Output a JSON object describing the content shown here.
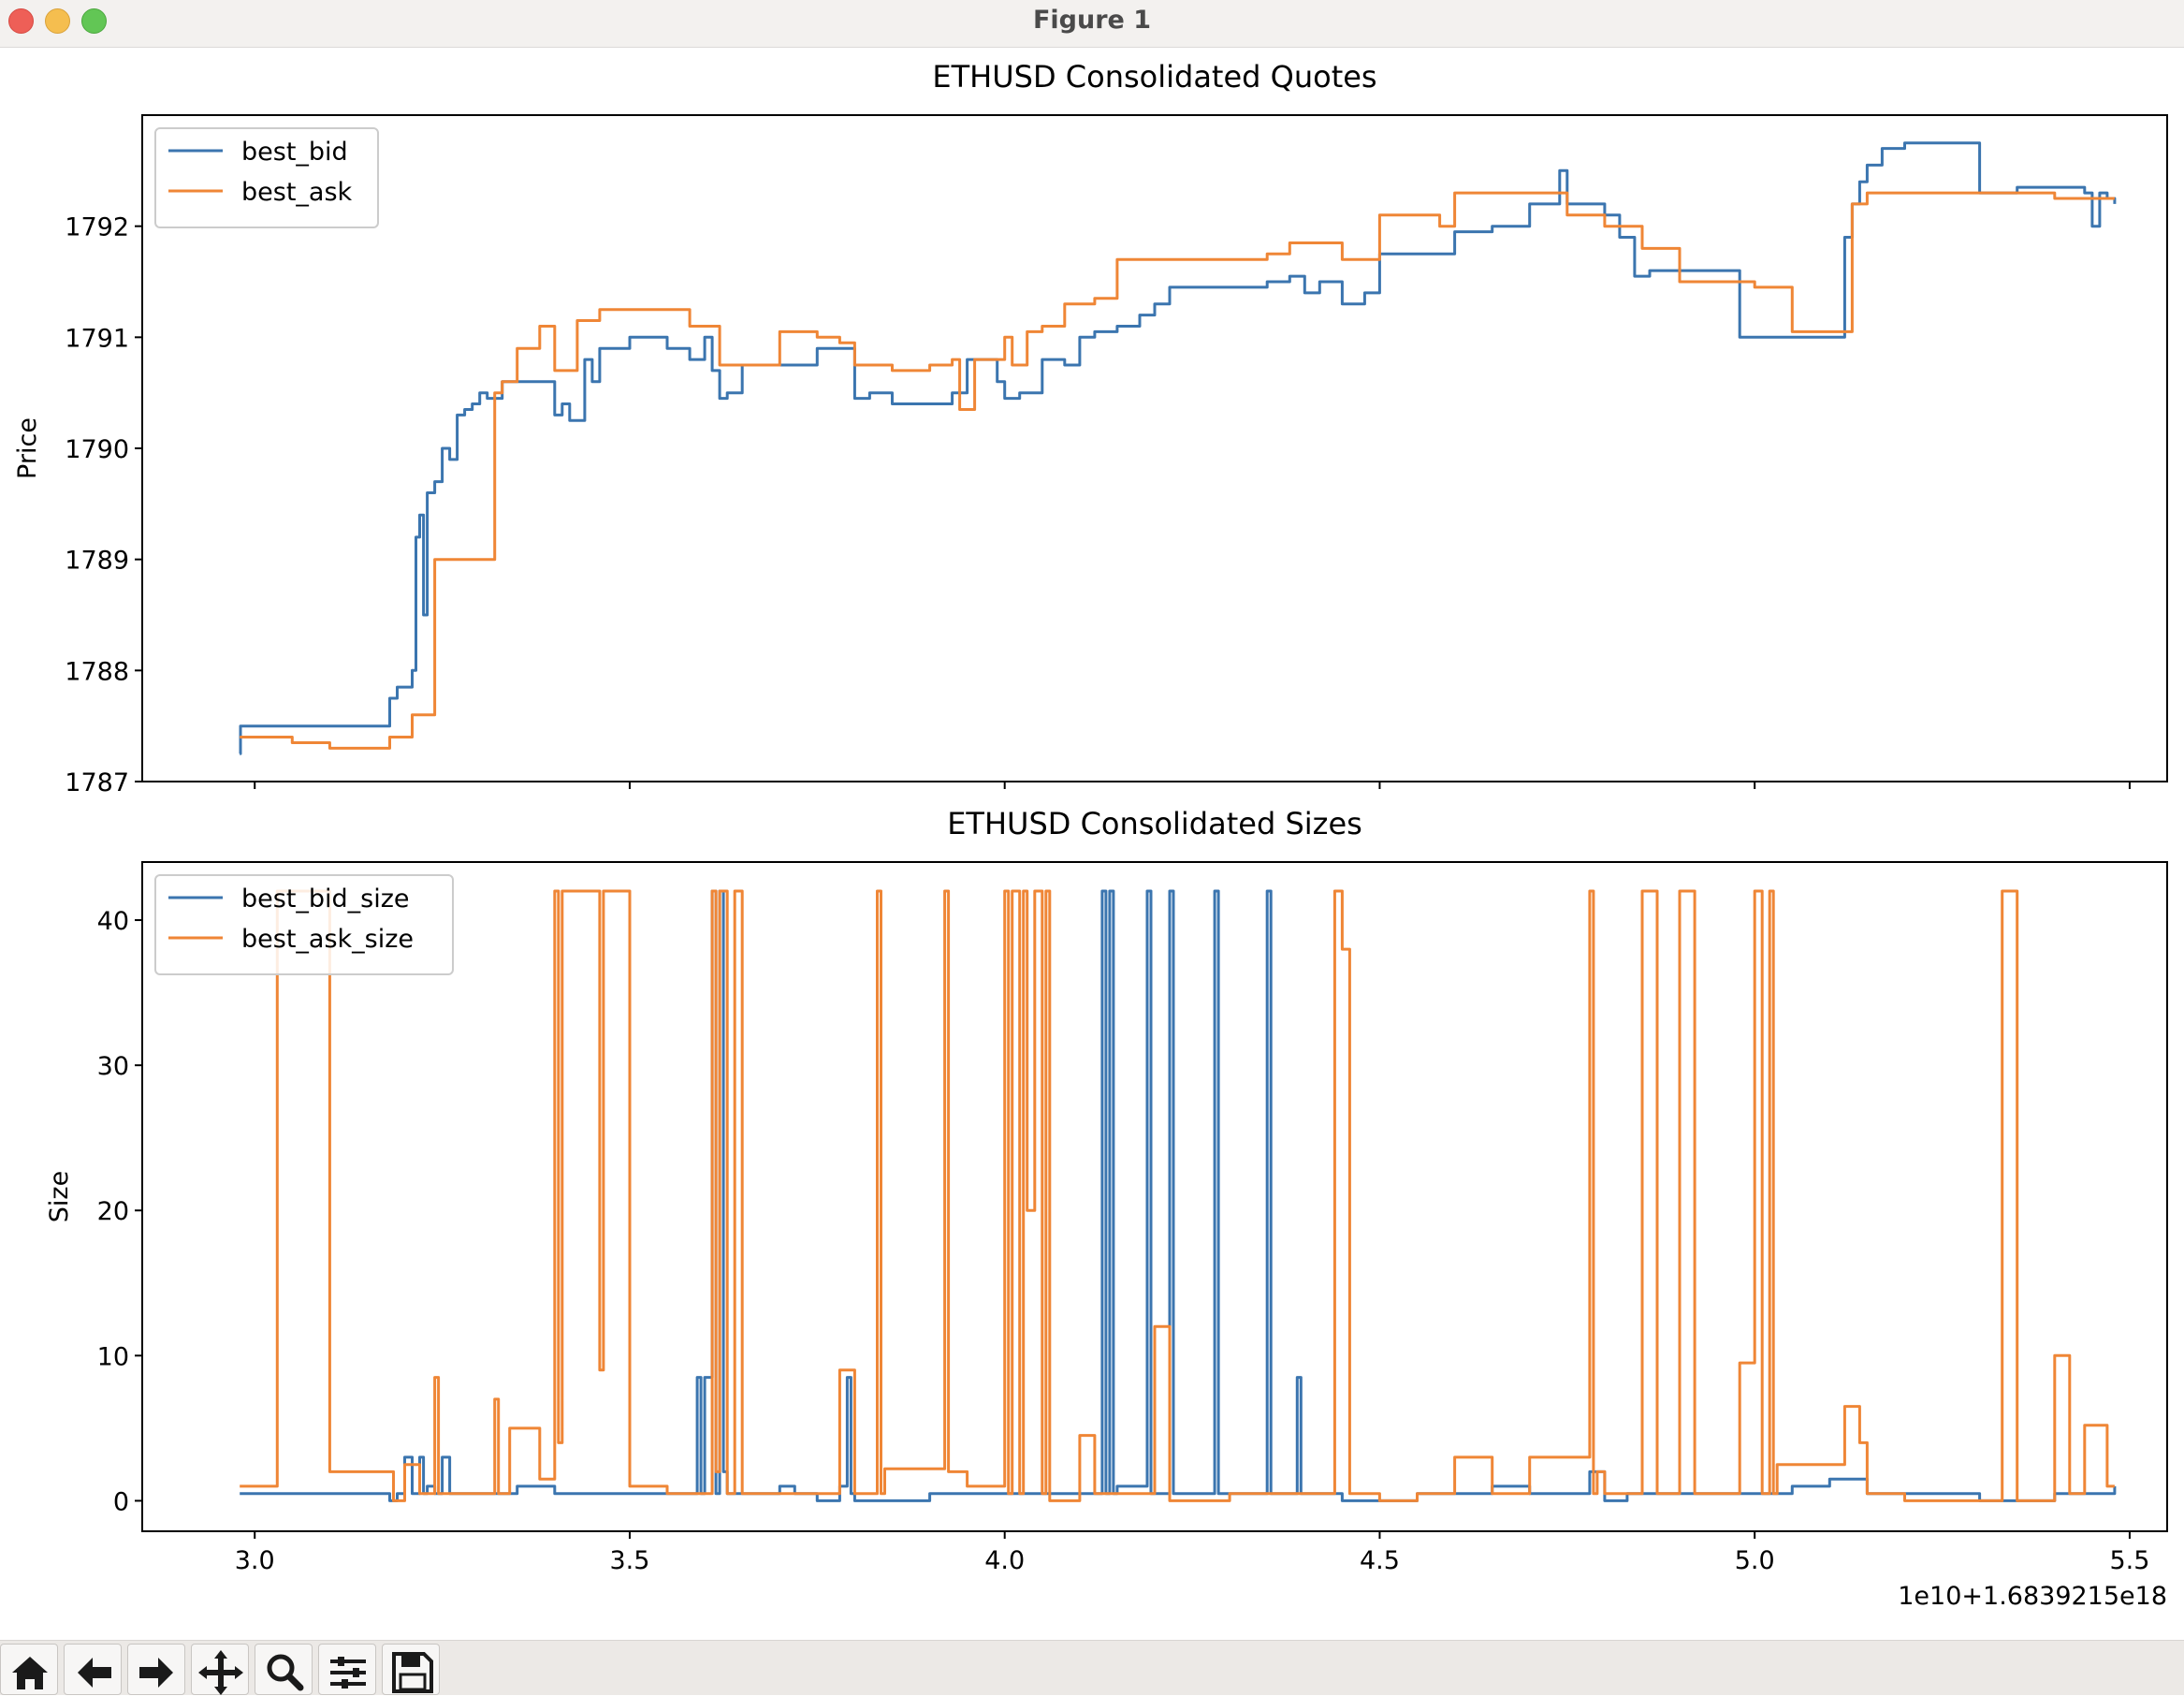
{
  "window": {
    "title": "Figure 1"
  },
  "toolbar": {
    "buttons": [
      {
        "name": "home-icon",
        "tooltip": "Reset original view"
      },
      {
        "name": "back-arrow-icon",
        "tooltip": "Back to previous view"
      },
      {
        "name": "forward-arrow-icon",
        "tooltip": "Forward to next view"
      },
      {
        "name": "pan-move-icon",
        "tooltip": "Pan axes"
      },
      {
        "name": "zoom-magnifier-icon",
        "tooltip": "Zoom to rectangle"
      },
      {
        "name": "configure-subplots-icon",
        "tooltip": "Configure subplots"
      },
      {
        "name": "save-floppy-icon",
        "tooltip": "Save the figure"
      }
    ]
  },
  "chart_data": [
    {
      "type": "line",
      "title": "ETHUSD Consolidated Quotes",
      "xlabel": "",
      "ylabel": "Price",
      "xlim": [
        2.85,
        5.55
      ],
      "ylim": [
        1787.0,
        1793.0
      ],
      "xticks": [
        3.0,
        3.5,
        4.0,
        4.5,
        5.0,
        5.5
      ],
      "xtick_labels_visible": false,
      "yticks": [
        1787,
        1788,
        1789,
        1790,
        1791,
        1792
      ],
      "ytick_labels": [
        "1787",
        "1788",
        "1789",
        "1790",
        "1791",
        "1792"
      ],
      "legend": {
        "placement": "upper-left"
      },
      "series": [
        {
          "name": "best_bid",
          "color": "#3b75af",
          "step": true,
          "x": [
            2.98,
            2.981,
            3.18,
            3.19,
            3.21,
            3.215,
            3.22,
            3.225,
            3.23,
            3.24,
            3.25,
            3.26,
            3.27,
            3.28,
            3.29,
            3.3,
            3.31,
            3.33,
            3.35,
            3.4,
            3.41,
            3.42,
            3.44,
            3.45,
            3.46,
            3.5,
            3.55,
            3.58,
            3.6,
            3.61,
            3.62,
            3.63,
            3.65,
            3.7,
            3.75,
            3.78,
            3.8,
            3.82,
            3.85,
            3.9,
            3.93,
            3.95,
            3.97,
            3.99,
            4.0,
            4.02,
            4.05,
            4.08,
            4.1,
            4.12,
            4.15,
            4.18,
            4.2,
            4.22,
            4.25,
            4.3,
            4.35,
            4.38,
            4.4,
            4.42,
            4.45,
            4.48,
            4.5,
            4.55,
            4.6,
            4.65,
            4.7,
            4.73,
            4.74,
            4.75,
            4.8,
            4.82,
            4.84,
            4.86,
            4.9,
            4.95,
            4.98,
            5.0,
            5.05,
            5.1,
            5.12,
            5.13,
            5.14,
            5.15,
            5.17,
            5.2,
            5.25,
            5.28,
            5.3,
            5.35,
            5.4,
            5.44,
            5.45,
            5.46,
            5.47,
            5.48
          ],
          "y": [
            1787.25,
            1787.5,
            1787.75,
            1787.85,
            1788.0,
            1789.2,
            1789.4,
            1788.5,
            1789.6,
            1789.7,
            1790.0,
            1789.9,
            1790.3,
            1790.35,
            1790.4,
            1790.5,
            1790.45,
            1790.6,
            1790.6,
            1790.3,
            1790.4,
            1790.25,
            1790.8,
            1790.6,
            1790.9,
            1791.0,
            1790.9,
            1790.8,
            1791.0,
            1790.7,
            1790.45,
            1790.5,
            1790.75,
            1790.75,
            1790.9,
            1790.9,
            1790.45,
            1790.5,
            1790.4,
            1790.4,
            1790.5,
            1790.8,
            1790.8,
            1790.6,
            1790.45,
            1790.5,
            1790.8,
            1790.75,
            1791.0,
            1791.05,
            1791.1,
            1791.2,
            1791.3,
            1791.45,
            1791.45,
            1791.45,
            1791.5,
            1791.55,
            1791.4,
            1791.5,
            1791.3,
            1791.4,
            1791.75,
            1791.75,
            1791.95,
            1792.0,
            1792.2,
            1792.2,
            1792.5,
            1792.2,
            1792.1,
            1791.9,
            1791.55,
            1791.6,
            1791.6,
            1791.6,
            1791.0,
            1791.0,
            1791.0,
            1791.0,
            1791.9,
            1792.2,
            1792.4,
            1792.55,
            1792.7,
            1792.75,
            1792.75,
            1792.75,
            1792.3,
            1792.35,
            1792.35,
            1792.3,
            1792.0,
            1792.3,
            1792.25,
            1792.2
          ]
        },
        {
          "name": "best_ask",
          "color": "#ef8636",
          "step": true,
          "x": [
            2.98,
            3.0,
            3.05,
            3.1,
            3.18,
            3.21,
            3.24,
            3.32,
            3.33,
            3.35,
            3.38,
            3.4,
            3.43,
            3.46,
            3.5,
            3.58,
            3.62,
            3.65,
            3.7,
            3.75,
            3.78,
            3.8,
            3.85,
            3.9,
            3.93,
            3.94,
            3.96,
            4.0,
            4.01,
            4.03,
            4.05,
            4.08,
            4.12,
            4.15,
            4.17,
            4.2,
            4.3,
            4.35,
            4.38,
            4.4,
            4.45,
            4.5,
            4.52,
            4.58,
            4.6,
            4.65,
            4.7,
            4.75,
            4.8,
            4.85,
            4.9,
            5.0,
            5.05,
            5.13,
            5.15,
            5.2,
            5.3,
            5.4,
            5.48
          ],
          "y": [
            1787.4,
            1787.4,
            1787.35,
            1787.3,
            1787.4,
            1787.6,
            1789.0,
            1790.5,
            1790.6,
            1790.9,
            1791.1,
            1790.7,
            1791.15,
            1791.25,
            1791.25,
            1791.1,
            1790.75,
            1790.75,
            1791.05,
            1791.0,
            1790.95,
            1790.75,
            1790.7,
            1790.75,
            1790.8,
            1790.35,
            1790.8,
            1791.0,
            1790.75,
            1791.05,
            1791.1,
            1791.3,
            1791.35,
            1791.7,
            1791.7,
            1791.7,
            1791.7,
            1791.75,
            1791.85,
            1791.85,
            1791.7,
            1792.1,
            1792.1,
            1792.0,
            1792.3,
            1792.3,
            1792.3,
            1792.1,
            1792.0,
            1791.8,
            1791.5,
            1791.45,
            1791.05,
            1792.2,
            1792.3,
            1792.3,
            1792.3,
            1792.25,
            1792.25
          ]
        }
      ]
    },
    {
      "type": "line",
      "title": "ETHUSD Consolidated Sizes",
      "xlabel": "",
      "ylabel": "Size",
      "xlim": [
        2.85,
        5.55
      ],
      "ylim": [
        -2.1,
        44.0
      ],
      "xticks": [
        3.0,
        3.5,
        4.0,
        4.5,
        5.0,
        5.5
      ],
      "xtick_labels": [
        "3.0",
        "3.5",
        "4.0",
        "4.5",
        "5.0",
        "5.5"
      ],
      "xaxis_offset_label": "1e10+1.6839215e18",
      "yticks": [
        0,
        10,
        20,
        30,
        40
      ],
      "ytick_labels": [
        "0",
        "10",
        "20",
        "30",
        "40"
      ],
      "legend": {
        "placement": "upper-left"
      },
      "series": [
        {
          "name": "best_bid_size",
          "color": "#3b75af",
          "step": true,
          "x": [
            2.98,
            3.18,
            3.19,
            3.2,
            3.21,
            3.22,
            3.225,
            3.23,
            3.24,
            3.25,
            3.26,
            3.3,
            3.35,
            3.4,
            3.45,
            3.5,
            3.55,
            3.59,
            3.595,
            3.6,
            3.61,
            3.615,
            3.62,
            3.625,
            3.63,
            3.65,
            3.7,
            3.72,
            3.75,
            3.78,
            3.79,
            3.795,
            3.8,
            3.85,
            3.9,
            3.95,
            4.0,
            4.05,
            4.1,
            4.13,
            4.135,
            4.14,
            4.145,
            4.15,
            4.19,
            4.195,
            4.2,
            4.22,
            4.225,
            4.23,
            4.28,
            4.285,
            4.29,
            4.35,
            4.355,
            4.36,
            4.39,
            4.395,
            4.4,
            4.45,
            4.5,
            4.55,
            4.6,
            4.65,
            4.7,
            4.75,
            4.78,
            4.8,
            4.83,
            4.85,
            4.9,
            4.95,
            5.0,
            5.05,
            5.1,
            5.12,
            5.15,
            5.2,
            5.3,
            5.35,
            5.4,
            5.45,
            5.48
          ],
          "y": [
            0.5,
            0.0,
            0.5,
            3.0,
            0.5,
            3.0,
            0.5,
            1.0,
            0.5,
            3.0,
            0.5,
            0.5,
            1.0,
            0.5,
            0.5,
            0.5,
            0.5,
            8.5,
            0.5,
            8.5,
            42,
            0.5,
            42,
            2.0,
            0.5,
            0.5,
            1.0,
            0.5,
            0.0,
            1.0,
            8.5,
            0.5,
            0.0,
            0.0,
            0.5,
            0.5,
            0.5,
            0.5,
            0.5,
            42,
            0.5,
            42,
            0.5,
            1.0,
            42,
            0.5,
            0.5,
            42,
            0.5,
            0.5,
            42,
            0.5,
            0.5,
            42,
            0.5,
            0.5,
            8.5,
            0.5,
            0.5,
            0.0,
            0.0,
            0.5,
            0.5,
            1.0,
            0.5,
            0.5,
            2.0,
            0.0,
            0.5,
            0.5,
            0.5,
            0.5,
            0.5,
            1.0,
            1.5,
            1.5,
            0.5,
            0.5,
            0.0,
            0.0,
            0.5,
            0.5,
            1.0
          ]
        },
        {
          "name": "best_ask_size",
          "color": "#ef8636",
          "step": true,
          "x": [
            2.98,
            3.02,
            3.03,
            3.08,
            3.1,
            3.18,
            3.185,
            3.2,
            3.22,
            3.24,
            3.245,
            3.32,
            3.325,
            3.34,
            3.38,
            3.4,
            3.405,
            3.41,
            3.43,
            3.46,
            3.465,
            3.47,
            3.5,
            3.55,
            3.6,
            3.61,
            3.615,
            3.62,
            3.63,
            3.64,
            3.65,
            3.655,
            3.7,
            3.75,
            3.78,
            3.8,
            3.83,
            3.835,
            3.84,
            3.9,
            3.92,
            3.925,
            3.93,
            3.95,
            4.0,
            4.005,
            4.01,
            4.02,
            4.025,
            4.03,
            4.04,
            4.05,
            4.055,
            4.06,
            4.1,
            4.12,
            4.18,
            4.2,
            4.22,
            4.225,
            4.3,
            4.35,
            4.4,
            4.44,
            4.45,
            4.46,
            4.47,
            4.5,
            4.55,
            4.6,
            4.65,
            4.7,
            4.78,
            4.785,
            4.79,
            4.8,
            4.85,
            4.87,
            4.9,
            4.92,
            4.95,
            4.98,
            5.0,
            5.01,
            5.02,
            5.025,
            5.03,
            5.1,
            5.12,
            5.14,
            5.15,
            5.2,
            5.25,
            5.33,
            5.35,
            5.4,
            5.42,
            5.44,
            5.47,
            5.48
          ],
          "y": [
            1.0,
            1.0,
            42,
            42,
            2.0,
            2.0,
            0.0,
            2.5,
            0.5,
            8.5,
            0.5,
            7.0,
            0.5,
            5.0,
            1.5,
            42,
            4.0,
            42,
            42,
            9.0,
            42,
            42,
            1.0,
            0.5,
            0.5,
            42,
            2.0,
            42,
            0.5,
            42,
            0.5,
            0.5,
            0.5,
            0.5,
            9.0,
            0.5,
            42,
            0.5,
            2.2,
            2.2,
            42,
            2.0,
            2.0,
            1.0,
            42,
            0.5,
            42,
            0.5,
            42,
            20,
            42,
            0.5,
            42,
            0.0,
            4.5,
            0.5,
            0.5,
            12,
            0.0,
            0.0,
            0.5,
            0.5,
            0.5,
            42,
            38,
            0.5,
            0.5,
            0.0,
            0.5,
            3.0,
            0.5,
            3.0,
            42,
            0.5,
            2.0,
            0.5,
            42,
            0.5,
            42,
            0.5,
            0.5,
            9.5,
            42,
            0.5,
            42,
            0.5,
            2.5,
            2.5,
            6.5,
            4.0,
            0.5,
            0.0,
            0.0,
            42,
            0.0,
            10,
            0.5,
            5.2,
            1.0,
            1.0
          ]
        }
      ]
    }
  ]
}
